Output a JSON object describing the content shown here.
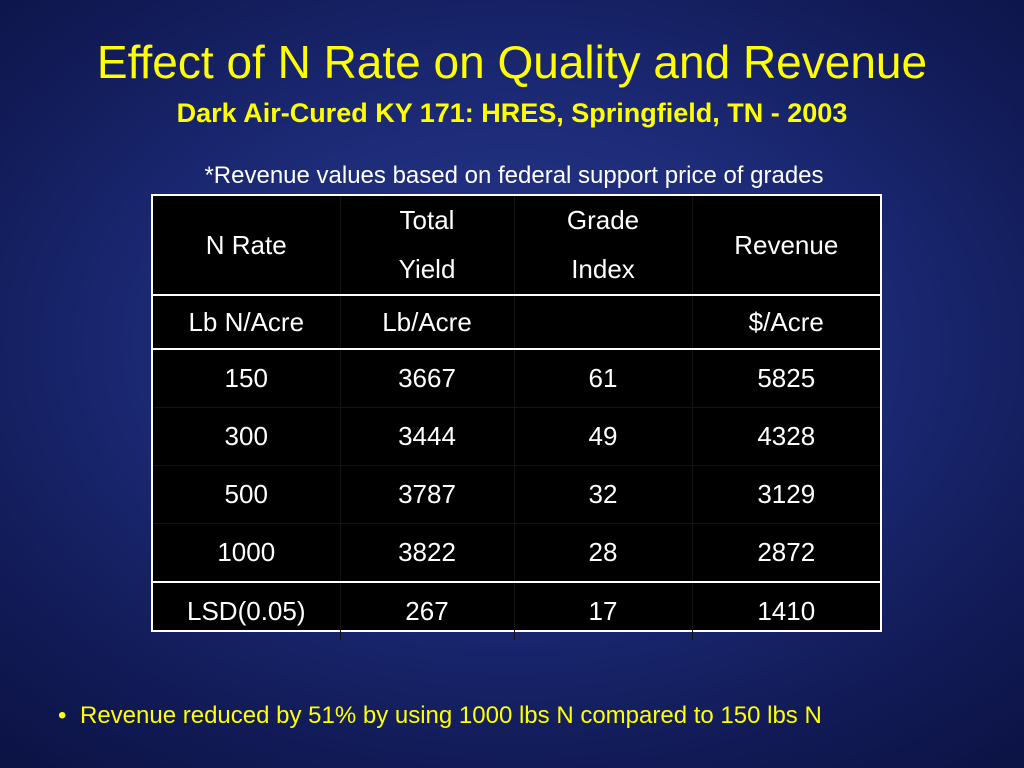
{
  "slide": {
    "title": "Effect of N Rate on Quality and Revenue",
    "subtitle": "Dark Air-Cured KY 171:  HRES, Springfield, TN - 2003",
    "note": "*Revenue values based on federal support price of grades"
  },
  "table": {
    "headers": [
      {
        "line1": "N Rate",
        "line2": ""
      },
      {
        "line1": "Total",
        "line2": "Yield"
      },
      {
        "line1": "Grade",
        "line2": "Index"
      },
      {
        "line1": "Revenue",
        "line2": ""
      }
    ],
    "units": [
      "Lb N/Acre",
      "Lb/Acre",
      "",
      "$/Acre"
    ],
    "rows": [
      [
        "150",
        "3667",
        "61",
        "5825"
      ],
      [
        "300",
        "3444",
        "49",
        "4328"
      ],
      [
        "500",
        "3787",
        "32",
        "3129"
      ],
      [
        "1000",
        "3822",
        "28",
        "2872"
      ]
    ],
    "lsd": [
      "LSD(0.05)",
      "267",
      "17",
      "1410"
    ]
  },
  "bullets": [
    {
      "marker": "•",
      "text": "Revenue reduced by 51% by using 1000 lbs N compared to 150 lbs N"
    }
  ],
  "colors": {
    "background": "#1c2a76",
    "heading": "#ffff00",
    "table_background": "#000000",
    "table_text": "#ffffff"
  }
}
